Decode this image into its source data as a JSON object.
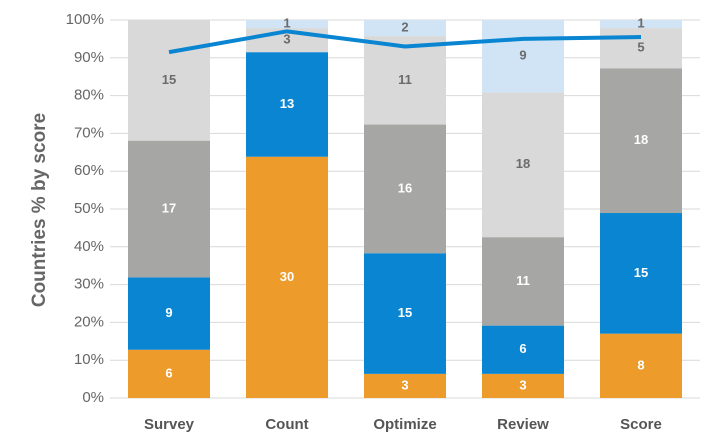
{
  "chart_data": {
    "type": "stacked_percent_bar_line",
    "y_label": "Countries % by score",
    "categories": [
      "Survey",
      "Count",
      "Optimize",
      "Review",
      "Score"
    ],
    "series": [
      {
        "color": "#ed9b2b",
        "label_color": "#ffffff",
        "values": [
          6,
          30,
          3,
          3,
          8
        ]
      },
      {
        "color": "#0a85d1",
        "label_color": "#ffffff",
        "values": [
          9,
          13,
          15,
          6,
          15
        ]
      },
      {
        "color": "#a6a6a4",
        "label_color": "#ffffff",
        "values": [
          17,
          null,
          16,
          11,
          18
        ]
      },
      {
        "color": "#d9d9d9",
        "label_color": "#6b6b6b",
        "values": [
          15,
          3,
          11,
          18,
          5
        ]
      },
      {
        "color": "#d0e4f6",
        "label_color": "#6b6b6b",
        "values": [
          null,
          1,
          2,
          9,
          1
        ]
      }
    ],
    "line": {
      "color": "#0a85d1",
      "values": [
        91.5,
        97,
        93,
        95,
        95.5
      ]
    },
    "ylim": [
      0,
      100
    ],
    "yticks": [
      {
        "value": 0,
        "label": "0%"
      },
      {
        "value": 10,
        "label": "10%"
      },
      {
        "value": 20,
        "label": "20%"
      },
      {
        "value": 30,
        "label": "30%"
      },
      {
        "value": 40,
        "label": "40%"
      },
      {
        "value": 50,
        "label": "50%"
      },
      {
        "value": 60,
        "label": "60%"
      },
      {
        "value": 70,
        "label": "70%"
      },
      {
        "value": 80,
        "label": "80%"
      },
      {
        "value": 90,
        "label": "90%"
      },
      {
        "value": 100,
        "label": "100%"
      }
    ],
    "grid": true
  }
}
